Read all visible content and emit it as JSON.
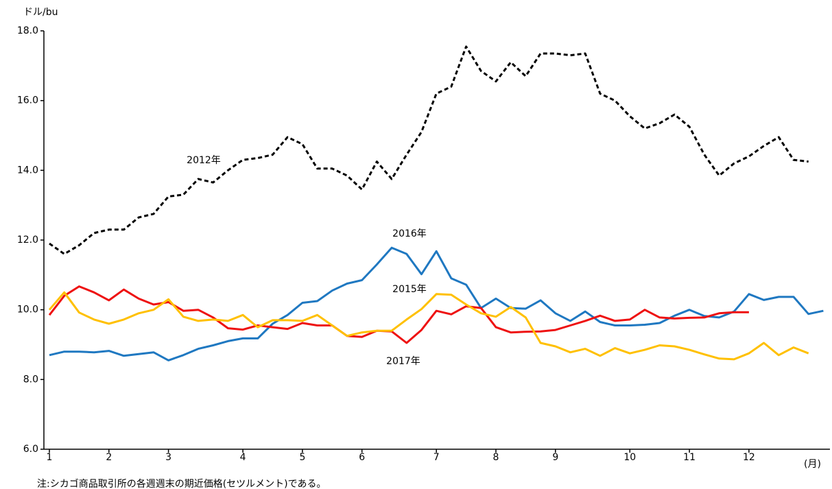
{
  "chart_data": {
    "type": "line",
    "y_axis_label": "ドル/bu",
    "x_axis_label": "(月)",
    "note": "注:シカゴ商品取引所の各週週末の期近価格(セツルメント)である。",
    "categories": [
      "1",
      null,
      null,
      null,
      "2",
      null,
      null,
      null,
      "3",
      null,
      null,
      null,
      null,
      "4",
      null,
      null,
      null,
      "5",
      null,
      null,
      null,
      "6",
      null,
      null,
      null,
      null,
      "7",
      null,
      null,
      null,
      "8",
      null,
      null,
      null,
      "9",
      null,
      null,
      null,
      null,
      "10",
      null,
      null,
      null,
      "11",
      null,
      null,
      null,
      "12",
      null,
      null,
      null,
      null,
      null
    ],
    "ylim": [
      6,
      18
    ],
    "yticks": [
      {
        "value": 6,
        "label": "6.0"
      },
      {
        "value": 8,
        "label": "8.0"
      },
      {
        "value": 10,
        "label": "10.0"
      },
      {
        "value": 12,
        "label": "12.0"
      },
      {
        "value": 14,
        "label": "14.0"
      },
      {
        "value": 16,
        "label": "16.0"
      },
      {
        "value": 18,
        "label": "18.0"
      }
    ],
    "grid": false,
    "series": [
      {
        "name": "2012年",
        "color": "#000000",
        "style": "dashed",
        "values": [
          11.9,
          11.6,
          11.85,
          12.2,
          12.3,
          12.3,
          12.65,
          12.75,
          13.25,
          13.3,
          13.75,
          13.65,
          14.0,
          14.3,
          14.35,
          14.45,
          14.95,
          14.75,
          14.05,
          14.05,
          13.85,
          13.45,
          14.25,
          13.75,
          14.45,
          15.1,
          16.2,
          16.4,
          17.55,
          16.85,
          16.55,
          17.1,
          16.7,
          17.35,
          17.35,
          17.3,
          17.35,
          16.2,
          16.0,
          15.55,
          15.2,
          15.35,
          15.6,
          15.25,
          14.45,
          13.85,
          14.2,
          14.4,
          14.7,
          14.95,
          14.3,
          14.25,
          null
        ]
      },
      {
        "name": "2016年",
        "color": "#1f78c1",
        "style": "solid",
        "values": [
          8.7,
          8.8,
          8.8,
          8.78,
          8.82,
          8.68,
          8.73,
          8.78,
          8.55,
          8.7,
          8.88,
          8.98,
          9.1,
          9.18,
          9.18,
          9.6,
          9.85,
          10.2,
          10.25,
          10.55,
          10.75,
          10.85,
          11.3,
          11.78,
          11.6,
          11.02,
          11.68,
          10.9,
          10.72,
          10.05,
          10.32,
          10.05,
          10.03,
          10.27,
          9.9,
          9.68,
          9.95,
          9.65,
          9.55,
          9.55,
          9.57,
          9.62,
          9.83,
          10.0,
          9.82,
          9.78,
          9.95,
          10.45,
          10.28,
          10.37,
          10.37,
          9.88,
          9.97
        ]
      },
      {
        "name": "2015年",
        "color": "#ee1111",
        "style": "solid",
        "values": [
          9.85,
          10.4,
          10.67,
          10.5,
          10.27,
          10.58,
          10.32,
          10.15,
          10.22,
          9.97,
          10.0,
          9.78,
          9.47,
          9.43,
          9.55,
          9.5,
          9.45,
          9.62,
          9.55,
          9.55,
          9.25,
          9.22,
          9.4,
          9.38,
          9.05,
          9.42,
          9.97,
          9.87,
          10.1,
          10.05,
          9.5,
          9.35,
          9.37,
          9.38,
          9.42,
          9.55,
          9.68,
          9.83,
          9.68,
          9.72,
          10.0,
          9.78,
          9.75,
          9.77,
          9.78,
          9.9,
          9.93,
          9.93,
          null,
          null,
          null,
          null,
          null
        ]
      },
      {
        "name": "2017年",
        "color": "#ffc000",
        "style": "solid",
        "values": [
          10.0,
          10.5,
          9.92,
          9.72,
          9.6,
          9.72,
          9.9,
          10.0,
          10.3,
          9.8,
          9.68,
          9.72,
          9.68,
          9.85,
          9.5,
          9.7,
          9.7,
          9.68,
          9.85,
          9.55,
          9.25,
          9.35,
          9.4,
          9.4,
          9.72,
          10.02,
          10.45,
          10.43,
          10.15,
          9.9,
          9.8,
          10.08,
          9.78,
          9.05,
          8.95,
          8.78,
          8.88,
          8.68,
          8.9,
          8.75,
          8.85,
          8.98,
          8.95,
          8.85,
          8.72,
          8.6,
          8.58,
          8.75,
          9.05,
          8.7,
          8.92,
          8.75,
          null
        ]
      }
    ]
  }
}
